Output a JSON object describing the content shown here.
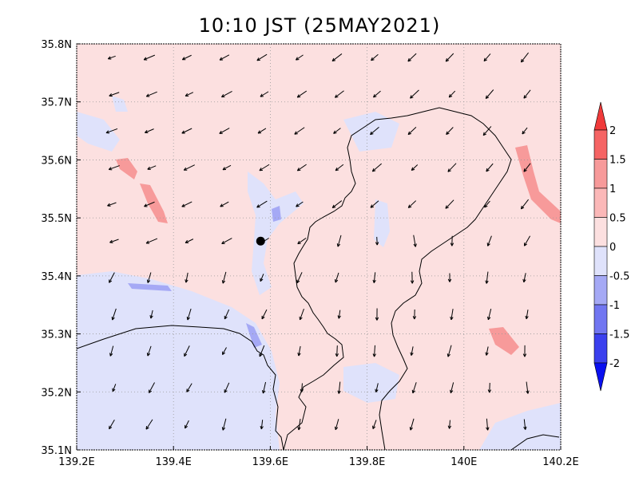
{
  "title": "10:10 JST (25MAY2021)",
  "chart_data": {
    "type": "heatmap",
    "x_ticks": [
      "139.2E",
      "139.4E",
      "139.6E",
      "139.8E",
      "140E",
      "140.2E"
    ],
    "x_values": [
      139.2,
      139.4,
      139.6,
      139.8,
      140.0,
      140.2
    ],
    "y_ticks": [
      "35.1N",
      "35.2N",
      "35.3N",
      "35.4N",
      "35.5N",
      "35.6N",
      "35.7N",
      "35.8N"
    ],
    "y_values": [
      35.1,
      35.2,
      35.3,
      35.4,
      35.5,
      35.6,
      35.7,
      35.8
    ],
    "xlim": [
      139.2,
      140.2
    ],
    "ylim": [
      35.1,
      35.8
    ],
    "grid": true,
    "colorbar": {
      "labels": [
        "2",
        "1.5",
        "1",
        "0.5",
        "0",
        "-0.5",
        "-1",
        "-1.5",
        "-2"
      ],
      "levels": [
        2,
        1.5,
        1,
        0.5,
        0,
        -0.5,
        -1,
        -1.5,
        -2
      ],
      "colors": [
        "#f03a3a",
        "#f56464",
        "#f79a9a",
        "#fcdcdc",
        "#dde0fa",
        "#a5a9f5",
        "#7176f1",
        "#3b40ee",
        "#0a10f0"
      ]
    },
    "station": {
      "lon": 139.58,
      "lat": 35.46
    },
    "background_color": "#fce0e0",
    "negative_color": "#dfe2fb"
  }
}
